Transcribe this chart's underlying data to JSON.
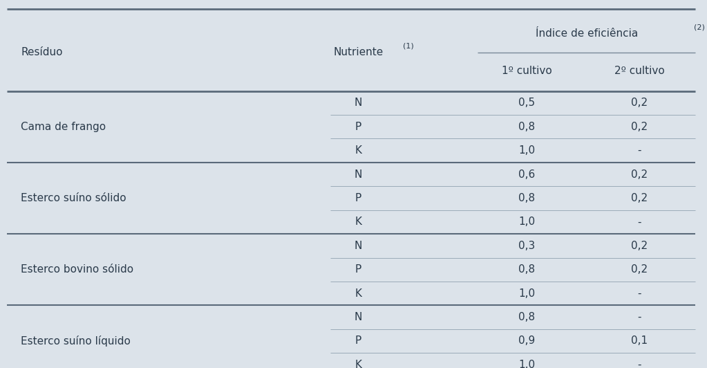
{
  "bg_color": "#dce3ea",
  "header_line_color": "#7a8a99",
  "row_line_color": "#9aabb8",
  "group_line_color": "#5a6a7a",
  "text_color": "#2a3a4a",
  "groups": [
    {
      "name": "Cama de frango",
      "rows": [
        [
          "N",
          "0,5",
          "0,2"
        ],
        [
          "P",
          "0,8",
          "0,2"
        ],
        [
          "K",
          "1,0",
          "-"
        ]
      ]
    },
    {
      "name": "Esterco suíno sólido",
      "rows": [
        [
          "N",
          "0,6",
          "0,2"
        ],
        [
          "P",
          "0,8",
          "0,2"
        ],
        [
          "K",
          "1,0",
          "-"
        ]
      ]
    },
    {
      "name": "Esterco bovino sólido",
      "rows": [
        [
          "N",
          "0,3",
          "0,2"
        ],
        [
          "P",
          "0,8",
          "0,2"
        ],
        [
          "K",
          "1,0",
          "-"
        ]
      ]
    },
    {
      "name": "Esterco suíno líquido",
      "rows": [
        [
          "N",
          "0,8",
          "-"
        ],
        [
          "P",
          "0,9",
          "0,1"
        ],
        [
          "K",
          "1,0",
          "-"
        ]
      ]
    }
  ]
}
